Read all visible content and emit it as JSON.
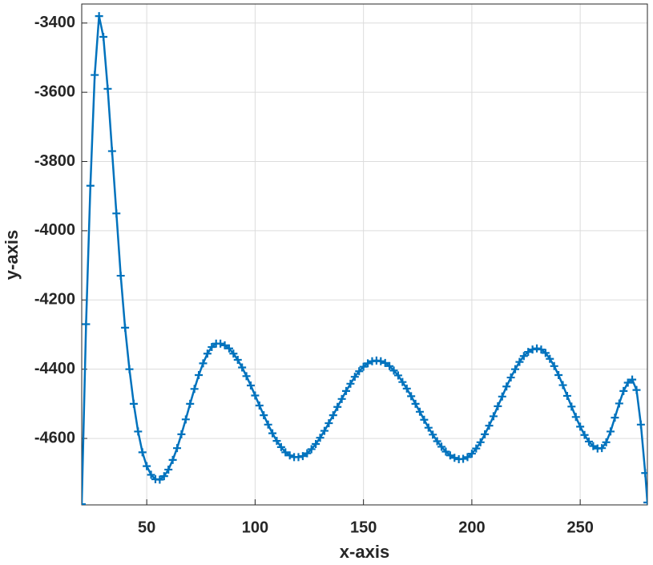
{
  "chart_data": {
    "type": "line",
    "xlabel": "x-axis",
    "ylabel": "y-axis",
    "x": [
      20,
      22,
      24,
      26,
      28,
      30,
      32,
      34,
      36,
      38,
      40,
      42,
      44,
      46,
      48,
      50,
      52,
      54,
      56,
      58,
      60,
      62,
      64,
      66,
      68,
      70,
      72,
      74,
      76,
      78,
      80,
      82,
      84,
      86,
      88,
      90,
      92,
      94,
      96,
      98,
      100,
      102,
      104,
      106,
      108,
      110,
      112,
      114,
      116,
      118,
      120,
      122,
      124,
      126,
      128,
      130,
      132,
      134,
      136,
      138,
      140,
      142,
      144,
      146,
      148,
      150,
      152,
      154,
      156,
      158,
      160,
      162,
      164,
      166,
      168,
      170,
      172,
      174,
      176,
      178,
      180,
      182,
      184,
      186,
      188,
      190,
      192,
      194,
      196,
      198,
      200,
      202,
      204,
      206,
      208,
      210,
      212,
      214,
      216,
      218,
      220,
      222,
      224,
      226,
      228,
      230,
      232,
      234,
      236,
      238,
      240,
      242,
      244,
      246,
      248,
      250,
      252,
      254,
      256,
      258,
      260,
      262,
      264,
      266,
      268,
      270,
      272,
      274,
      276,
      278,
      280,
      281
    ],
    "values": [
      -4790,
      -4270,
      -3870,
      -3550,
      -3380,
      -3440,
      -3590,
      -3770,
      -3950,
      -4130,
      -4280,
      -4400,
      -4500,
      -4580,
      -4640,
      -4680,
      -4705,
      -4718,
      -4719,
      -4709,
      -4690,
      -4662,
      -4628,
      -4588,
      -4545,
      -4500,
      -4457,
      -4417,
      -4383,
      -4355,
      -4336,
      -4326,
      -4326,
      -4331,
      -4340,
      -4355,
      -4373,
      -4395,
      -4420,
      -4447,
      -4476,
      -4505,
      -4533,
      -4560,
      -4585,
      -4607,
      -4625,
      -4640,
      -4649,
      -4654,
      -4654,
      -4651,
      -4643,
      -4631,
      -4616,
      -4598,
      -4578,
      -4556,
      -4533,
      -4509,
      -4486,
      -4463,
      -4442,
      -4422,
      -4406,
      -4393,
      -4383,
      -4377,
      -4375,
      -4377,
      -4382,
      -4391,
      -4404,
      -4418,
      -4437,
      -4456,
      -4478,
      -4500,
      -4523,
      -4546,
      -4569,
      -4589,
      -4608,
      -4624,
      -4638,
      -4649,
      -4656,
      -4660,
      -4659,
      -4654,
      -4644,
      -4629,
      -4611,
      -4588,
      -4563,
      -4536,
      -4507,
      -4479,
      -4450,
      -4424,
      -4400,
      -4379,
      -4362,
      -4350,
      -4343,
      -4340,
      -4343,
      -4353,
      -4370,
      -4391,
      -4417,
      -4446,
      -4477,
      -4508,
      -4538,
      -4566,
      -4590,
      -4609,
      -4622,
      -4629,
      -4628,
      -4611,
      -4580,
      -4540,
      -4499,
      -4463,
      -4439,
      -4430,
      -4460,
      -4560,
      -4700,
      -4785
    ],
    "color": "#0072bd",
    "marker": "+",
    "xlim": [
      20,
      281
    ],
    "ylim": [
      -4792,
      -3345
    ],
    "xticks": [
      50,
      100,
      150,
      200,
      250
    ],
    "yticks": [
      -4600,
      -4400,
      -4200,
      -4000,
      -3800,
      -3600,
      -3400
    ],
    "grid": true
  }
}
